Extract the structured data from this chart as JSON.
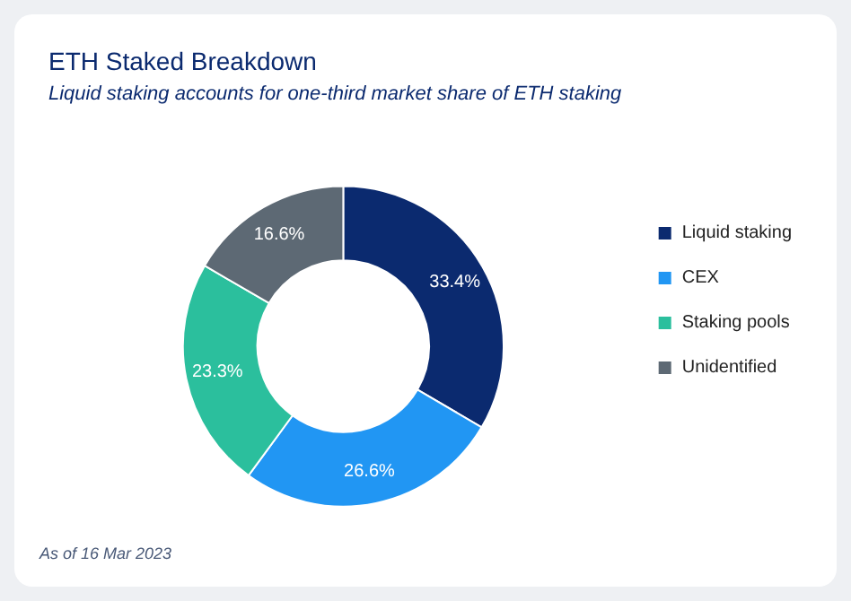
{
  "chart_data": {
    "type": "donut",
    "title": "ETH Staked Breakdown",
    "subtitle": "Liquid staking accounts for one-third market share of ETH staking",
    "categories": [
      "Liquid staking",
      "CEX",
      "Staking pools",
      "Unidentified"
    ],
    "values": [
      33.4,
      26.6,
      23.3,
      16.6
    ],
    "colors": [
      "#0b2a6f",
      "#2196f3",
      "#2bbf9d",
      "#5d6974"
    ],
    "value_labels": [
      "33.4%",
      "26.6%",
      "23.3%",
      "16.6%"
    ],
    "legend": "right",
    "annotations": [
      "As of 16 Mar 2023"
    ]
  }
}
